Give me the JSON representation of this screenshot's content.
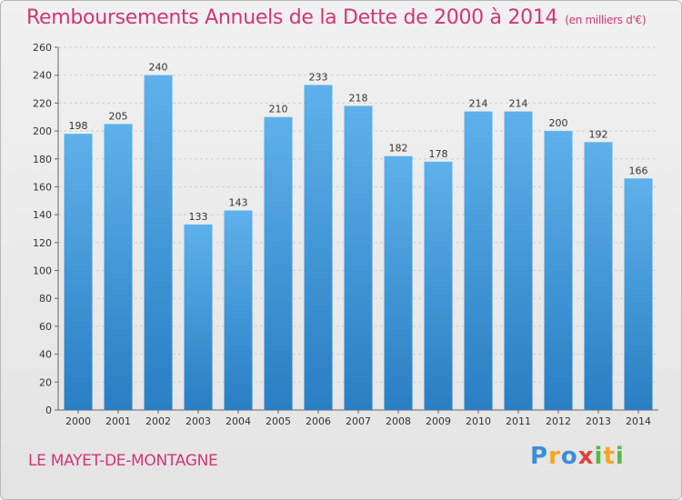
{
  "chart_data": {
    "type": "bar",
    "title": "Remboursements Annuels de la Dette de 2000 à 2014",
    "subtitle": "(en milliers d'€)",
    "categories": [
      "2000",
      "2001",
      "2002",
      "2003",
      "2004",
      "2005",
      "2006",
      "2007",
      "2008",
      "2009",
      "2010",
      "2011",
      "2012",
      "2013",
      "2014"
    ],
    "values": [
      198,
      205,
      240,
      133,
      143,
      210,
      233,
      218,
      182,
      178,
      214,
      214,
      200,
      192,
      166
    ],
    "ylim": [
      0,
      260
    ],
    "yticks": [
      0,
      20,
      40,
      60,
      80,
      100,
      120,
      140,
      160,
      180,
      200,
      220,
      240,
      260
    ],
    "grid": true,
    "xlabel": "",
    "ylabel": ""
  },
  "footer": {
    "city": "LE MAYET-DE-MONTAGNE",
    "logo_letters": [
      "P",
      "r",
      "o",
      "x",
      "i",
      "t",
      "i"
    ]
  },
  "colors": {
    "title": "#d0367a",
    "bar_top": "#5eb1ea",
    "bar_bottom": "#2a7ec2",
    "logo": [
      "#3a8fd8",
      "#f5a623",
      "#3a8fd8",
      "#e2403a",
      "#58b947",
      "#f5a623",
      "#58b947"
    ]
  }
}
